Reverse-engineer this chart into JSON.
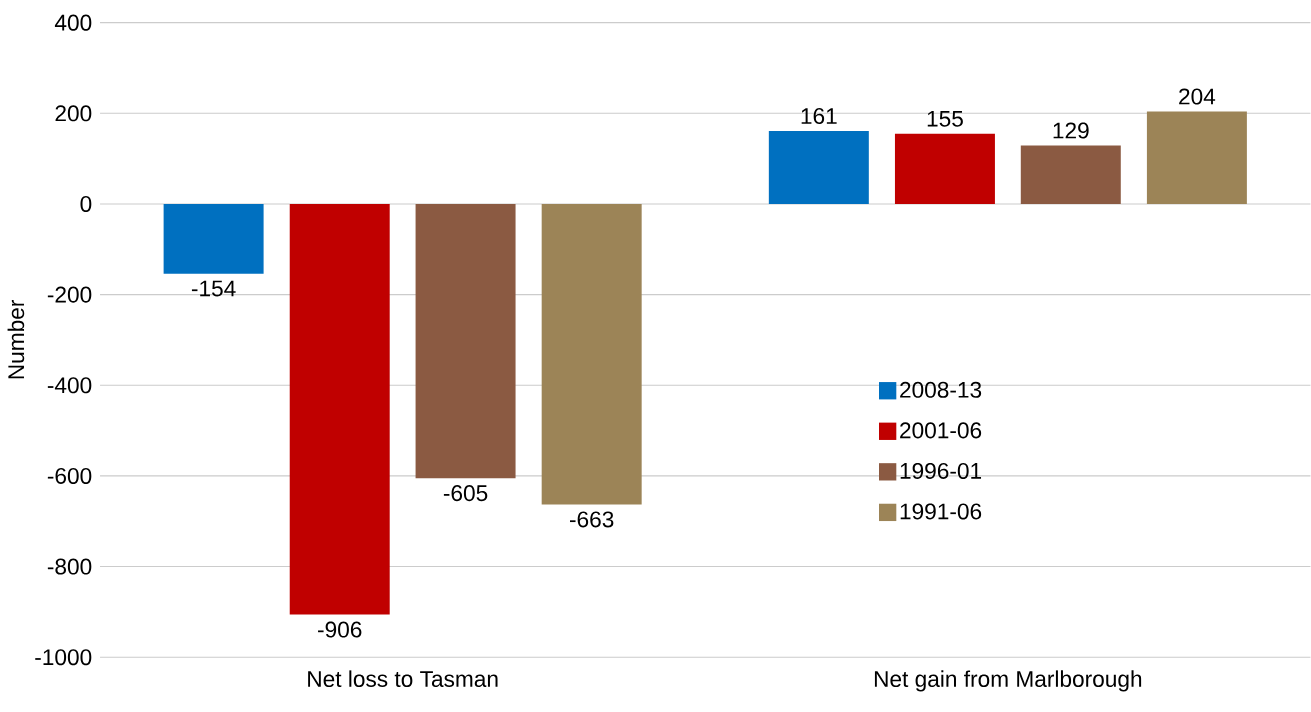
{
  "chart_data": {
    "type": "bar",
    "ylabel": "Number",
    "categories": [
      "Net loss to Tasman",
      "Net gain from Marlborough"
    ],
    "series": [
      {
        "name": "2008-13",
        "color": "#0070c0",
        "values": [
          -154,
          161
        ]
      },
      {
        "name": "2001-06",
        "color": "#c00000",
        "values": [
          -906,
          155
        ]
      },
      {
        "name": "1996-01",
        "color": "#8b5a42",
        "values": [
          -605,
          129
        ]
      },
      {
        "name": "1991-06",
        "color": "#9c8457",
        "values": [
          -663,
          204
        ]
      }
    ],
    "ylim": [
      -1000,
      400
    ],
    "yticks": [
      -1000,
      -800,
      -600,
      -400,
      -200,
      0,
      200,
      400
    ],
    "grid": "y",
    "legend": "right",
    "data_labels": true
  }
}
